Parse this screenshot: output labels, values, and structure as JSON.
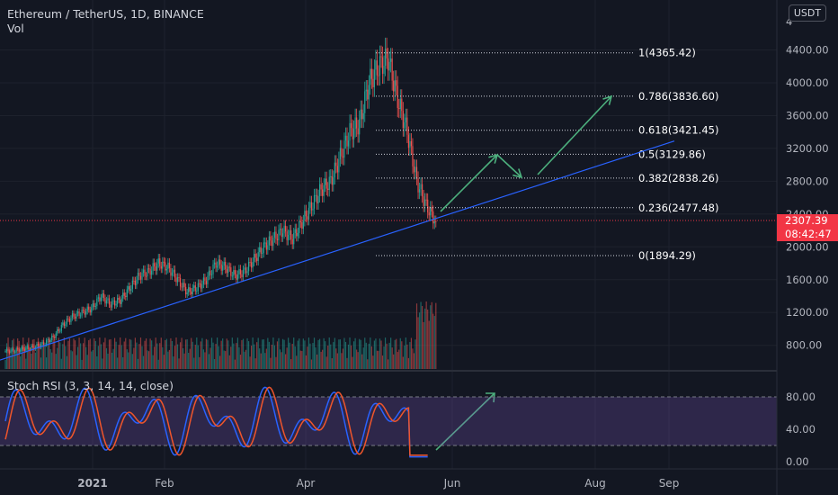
{
  "header": {
    "symbol": "Ethereum / TetherUS, 1D, BINANCE",
    "volume": "Vol",
    "currency_badge": "USDT"
  },
  "current_price": {
    "value": "2307.39",
    "countdown": "08:42:47",
    "color": "#f23645"
  },
  "colors": {
    "up": "#26a69a",
    "down": "#ef5350",
    "trendline": "#2962ff",
    "arrows": "#4caf7d",
    "rsi_k": "#2962ff",
    "rsi_d": "#f0552b",
    "rsi_band": "#7e57c2"
  },
  "price_axis": {
    "ticks": [
      "4400.00",
      "4000.00",
      "3600.00",
      "3200.00",
      "2800.00",
      "2400.00",
      "2000.00",
      "1600.00",
      "1200.00",
      "800.00"
    ],
    "partial_top": "4"
  },
  "time_axis": {
    "labels": [
      "2021",
      "Feb",
      "Apr",
      "Jun",
      "Aug",
      "Sep"
    ]
  },
  "fibonacci": [
    {
      "label": "1(4365.42)",
      "price": 4365.42
    },
    {
      "label": "0.786(3836.60)",
      "price": 3836.6
    },
    {
      "label": "0.618(3421.45)",
      "price": 3421.45
    },
    {
      "label": "0.5(3129.86)",
      "price": 3129.86
    },
    {
      "label": "0.382(2838.26)",
      "price": 2838.26
    },
    {
      "label": "0.236(2477.48)",
      "price": 2477.48
    },
    {
      "label": "0(1894.29)",
      "price": 1894.29
    }
  ],
  "rsi_panel": {
    "label": "Stoch RSI (3, 3, 14, 14, close)",
    "ticks": [
      "80.00",
      "40.00",
      "0.00"
    ],
    "upper_band": 80,
    "lower_band": 20
  },
  "chart_data": {
    "type": "candlestick",
    "title": "",
    "series_close_approx": [
      730,
      740,
      760,
      780,
      820,
      900,
      1050,
      1150,
      1200,
      1250,
      1400,
      1300,
      1350,
      1500,
      1650,
      1700,
      1800,
      1750,
      1600,
      1450,
      1500,
      1600,
      1800,
      1750,
      1650,
      1700,
      1850,
      2000,
      2100,
      2200,
      2100,
      2300,
      2500,
      2700,
      2800,
      3100,
      3400,
      3500,
      4000,
      4200,
      4300,
      3800,
      3400,
      2800,
      2500,
      2307
    ],
    "trendline": {
      "start_price": 620,
      "end_price": 3290
    }
  }
}
